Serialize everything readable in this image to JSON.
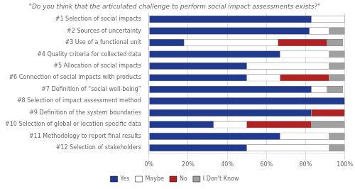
{
  "chart_data": {
    "type": "bar",
    "orientation": "horizontal",
    "stacked": true,
    "title": "\"Do you think that the articulated challenge to perform social impact assessments exists?\"",
    "categories": [
      "#1 Selection of social impacts",
      "#2 Sources of uncertainty",
      "#3 Use of a functional unit",
      "#4 Quality criteria for collected data",
      "#5 Allocation of social impacts",
      "#6 Connection of social impacts with products",
      "#7 Definition of “social well-being”",
      "#8 Selection of impact assessment method",
      "#9 Definition of the system boundaries",
      "#10 Selection of global or location specific data",
      "#11 Methodology to report final results",
      "#12 Selection of stakeholders"
    ],
    "series": [
      {
        "name": "Yes",
        "color": "#1F3A8F",
        "values": [
          83,
          82,
          18,
          67,
          50,
          50,
          83,
          100,
          83,
          33,
          67,
          50
        ]
      },
      {
        "name": "Maybe",
        "color": "#FFFFFF",
        "values": [
          17,
          10,
          48,
          25,
          42,
          17,
          8,
          0,
          0,
          17,
          25,
          42
        ]
      },
      {
        "name": "No",
        "color": "#B22222",
        "values": [
          0,
          0,
          25,
          0,
          0,
          25,
          0,
          0,
          17,
          33,
          0,
          0
        ]
      },
      {
        "name": "I Don't Know",
        "color": "#A0A0A0",
        "values": [
          0,
          8,
          8,
          8,
          8,
          8,
          8,
          0,
          0,
          17,
          8,
          8
        ]
      }
    ],
    "xlim": [
      0,
      100
    ],
    "xticks": [
      {
        "value": 0,
        "label": "0%"
      },
      {
        "value": 20,
        "label": "20%"
      },
      {
        "value": 40,
        "label": "40%"
      },
      {
        "value": 60,
        "label": "60%"
      },
      {
        "value": 80,
        "label": "80%"
      },
      {
        "value": 100,
        "label": "100%"
      }
    ],
    "grid": true,
    "legend": "bottom"
  }
}
